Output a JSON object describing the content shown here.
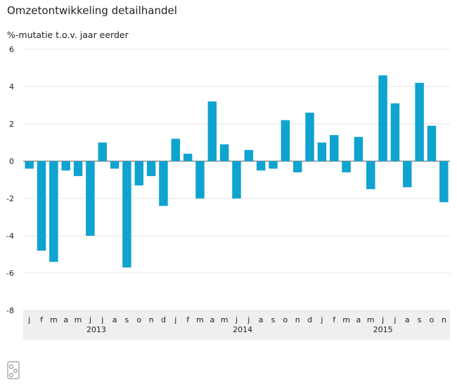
{
  "chart_data": {
    "type": "bar",
    "title": "Omzetontwikkeling detailhandel",
    "ylabel": "%-mutatie t.o.v. jaar eerder",
    "ylim": [
      -8,
      6
    ],
    "yticks": [
      6,
      4,
      2,
      0,
      -2,
      -4,
      -6,
      -8
    ],
    "categories": [
      "j",
      "f",
      "m",
      "a",
      "m",
      "j",
      "j",
      "a",
      "s",
      "o",
      "n",
      "d",
      "j",
      "f",
      "m",
      "a",
      "m",
      "j",
      "j",
      "a",
      "s",
      "o",
      "n",
      "d",
      "j",
      "f",
      "m",
      "a",
      "m",
      "j",
      "j",
      "a",
      "s",
      "o",
      "n"
    ],
    "year_groups": [
      {
        "label": "2013",
        "start": 0,
        "end": 11
      },
      {
        "label": "2014",
        "start": 12,
        "end": 23
      },
      {
        "label": "2015",
        "start": 24,
        "end": 34
      }
    ],
    "values": [
      -0.4,
      -4.8,
      -5.4,
      -0.5,
      -0.8,
      -4.0,
      1.0,
      -0.4,
      -5.7,
      -1.3,
      -0.8,
      -2.4,
      1.2,
      0.4,
      -2.0,
      3.2,
      0.9,
      -2.0,
      0.6,
      -0.5,
      -0.4,
      2.2,
      -0.6,
      2.6,
      1.0,
      1.4,
      -0.6,
      1.3,
      -1.5,
      4.6,
      3.1,
      -1.4,
      4.2,
      1.9,
      -2.2
    ],
    "grid": true,
    "bar_color": "#0fa3cf"
  },
  "logo_icon": "cbs-logo-icon"
}
